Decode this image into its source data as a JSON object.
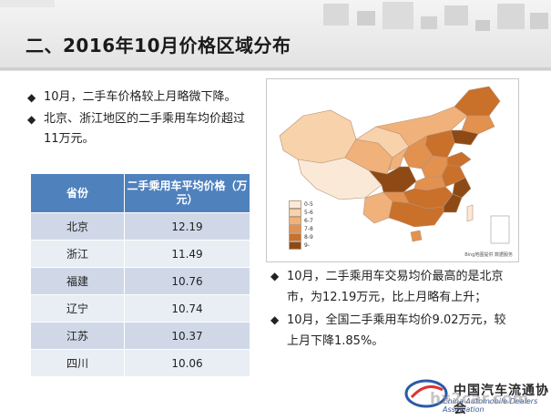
{
  "header": {
    "title": "二、2016年10月价格区域分布"
  },
  "left_bullets": [
    {
      "mark": "◆",
      "text": "10月，二手车价格较上月略微下降。"
    },
    {
      "mark": "◆",
      "text": "北京、浙江地区的二手乘用车均价超过11万元。"
    }
  ],
  "table": {
    "header_province": "省份",
    "header_price": "二手乘用车平均价格（万元）",
    "rows": [
      {
        "province": "北京",
        "price": "12.19"
      },
      {
        "province": "浙江",
        "price": "11.49"
      },
      {
        "province": "福建",
        "price": "10.76"
      },
      {
        "province": "辽宁",
        "price": "10.74"
      },
      {
        "province": "江苏",
        "price": "10.37"
      },
      {
        "province": "四川",
        "price": "10.06"
      }
    ]
  },
  "map": {
    "legend": [
      {
        "label": "0-5",
        "color": "#fbe9d8"
      },
      {
        "label": "5-6",
        "color": "#f7d2aa"
      },
      {
        "label": "6-7",
        "color": "#f0b27a"
      },
      {
        "label": "7-8",
        "color": "#e3914e"
      },
      {
        "label": "8-9",
        "color": "#c9702b"
      },
      {
        "label": "9-",
        "color": "#8e4a14"
      }
    ],
    "source": "Bing地图提供 数据服务"
  },
  "right_bullets": [
    {
      "mark": "◆",
      "text": "10月，二手乘用车交易均价最高的是北京市，为12.19万元，比上月略有上升；"
    },
    {
      "mark": "◆",
      "text": "10月，全国二手乘用车均价9.02万元，较上月下降1.85%。"
    }
  ],
  "logo": {
    "text": "中国汽车流通协会",
    "sub": "China Automobile Dealers Association",
    "watermark": "hx2car.com"
  }
}
